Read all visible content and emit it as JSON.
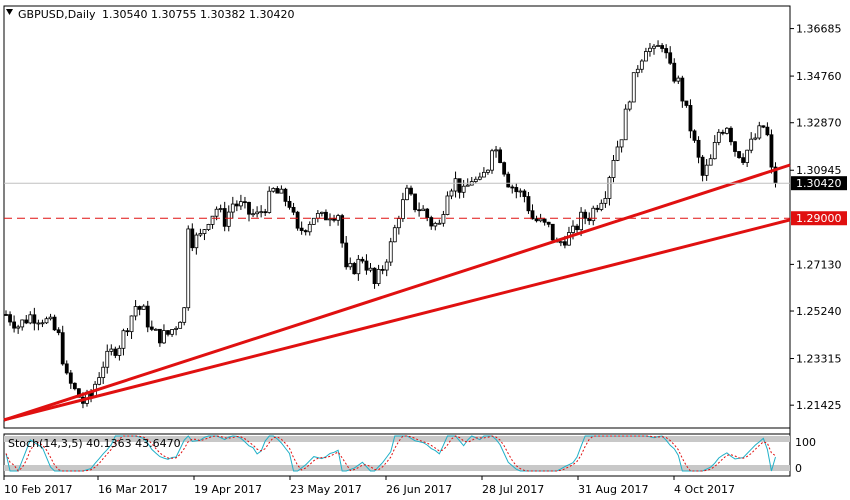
{
  "window": {
    "symbol_label": "GBPUSD,Daily",
    "ohlc_label": "1.30540 1.30755 1.30382 1.30420"
  },
  "colors": {
    "background": "#ffffff",
    "candle": "#000000",
    "trendline": "#e01010",
    "level_line": "#e01010",
    "current_price_bg": "#000000",
    "level_bg": "#e01010",
    "stoch_main": "#20b0c8",
    "stoch_signal": "#e01010"
  },
  "price_axis": {
    "ticks": [
      "1.36685",
      "1.34760",
      "1.32870",
      "1.30945",
      "1.27130",
      "1.25240",
      "1.23315",
      "1.21425"
    ],
    "current_price": "1.30420",
    "level_price": "1.29000"
  },
  "time_axis": {
    "labels": [
      "10 Feb 2017",
      "16 Mar 2017",
      "19 Apr 2017",
      "23 May 2017",
      "26 Jun 2017",
      "28 Jul 2017",
      "31 Aug 2017",
      "4 Oct 2017"
    ]
  },
  "indicator": {
    "label": "Stoch(14,3,5) 40.1363 43.6470",
    "level_high": "100",
    "level_low": "0"
  },
  "chart_data": {
    "type": "candlestick",
    "symbol": "GBPUSD",
    "timeframe": "Daily",
    "ylim": [
      1.205,
      1.376
    ],
    "horizontal_level": 1.29,
    "trendlines": [
      {
        "from": [
          0,
          1.2085
        ],
        "to": [
          188,
          1.3086
        ]
      },
      {
        "from": [
          0,
          1.2085
        ],
        "to": [
          188,
          1.287
        ]
      }
    ],
    "path": [
      [
        0,
        1.251
      ],
      [
        3,
        1.2465
      ],
      [
        6,
        1.2505
      ],
      [
        9,
        1.2495
      ],
      [
        11,
        1.247
      ],
      [
        13,
        1.242
      ],
      [
        15,
        1.225
      ],
      [
        17,
        1.22
      ],
      [
        19,
        1.2155
      ],
      [
        21,
        1.218
      ],
      [
        22,
        1.223
      ],
      [
        24,
        1.231
      ],
      [
        26,
        1.2355
      ],
      [
        28,
        1.239
      ],
      [
        30,
        1.247
      ],
      [
        32,
        1.2545
      ],
      [
        34,
        1.252
      ],
      [
        36,
        1.244
      ],
      [
        38,
        1.242
      ],
      [
        40,
        1.243
      ],
      [
        42,
        1.247
      ],
      [
        44,
        1.253
      ],
      [
        45,
        1.288
      ],
      [
        46,
        1.281
      ],
      [
        48,
        1.2825
      ],
      [
        50,
        1.29
      ],
      [
        52,
        1.294
      ],
      [
        54,
        1.289
      ],
      [
        56,
        1.296
      ],
      [
        58,
        1.295
      ],
      [
        60,
        1.292
      ],
      [
        62,
        1.291
      ],
      [
        64,
        1.295
      ],
      [
        66,
        1.301
      ],
      [
        68,
        1.299
      ],
      [
        70,
        1.296
      ],
      [
        72,
        1.284
      ],
      [
        74,
        1.287
      ],
      [
        76,
        1.291
      ],
      [
        78,
        1.29
      ],
      [
        80,
        1.292
      ],
      [
        82,
        1.292
      ],
      [
        84,
        1.268
      ],
      [
        86,
        1.27
      ],
      [
        88,
        1.274
      ],
      [
        90,
        1.268
      ],
      [
        91,
        1.263
      ],
      [
        93,
        1.27
      ],
      [
        95,
        1.279
      ],
      [
        97,
        1.292
      ],
      [
        99,
        1.3
      ],
      [
        101,
        1.295
      ],
      [
        103,
        1.293
      ],
      [
        105,
        1.288
      ],
      [
        107,
        1.287
      ],
      [
        109,
        1.302
      ],
      [
        111,
        1.305
      ],
      [
        113,
        1.3
      ],
      [
        115,
        1.306
      ],
      [
        117,
        1.304
      ],
      [
        119,
        1.311
      ],
      [
        120,
        1.32
      ],
      [
        122,
        1.315
      ],
      [
        124,
        1.305
      ],
      [
        126,
        1.301
      ],
      [
        128,
        1.299
      ],
      [
        130,
        1.29
      ],
      [
        132,
        1.288
      ],
      [
        134,
        1.286
      ],
      [
        136,
        1.279
      ],
      [
        138,
        1.282
      ],
      [
        140,
        1.284
      ],
      [
        142,
        1.29
      ],
      [
        144,
        1.291
      ],
      [
        146,
        1.296
      ],
      [
        148,
        1.301
      ],
      [
        150,
        1.315
      ],
      [
        152,
        1.324
      ],
      [
        154,
        1.34
      ],
      [
        156,
        1.352
      ],
      [
        158,
        1.36
      ],
      [
        160,
        1.357
      ],
      [
        162,
        1.361
      ],
      [
        164,
        1.35
      ],
      [
        166,
        1.345
      ],
      [
        168,
        1.333
      ],
      [
        170,
        1.32
      ],
      [
        172,
        1.307
      ],
      [
        174,
        1.313
      ],
      [
        176,
        1.325
      ],
      [
        178,
        1.328
      ],
      [
        180,
        1.318
      ],
      [
        182,
        1.315
      ],
      [
        184,
        1.32
      ],
      [
        186,
        1.325
      ],
      [
        187,
        1.327
      ],
      [
        188,
        1.323
      ],
      [
        189,
        1.309
      ],
      [
        190,
        1.3042
      ]
    ],
    "stochastic": {
      "params": "14,3,5",
      "main": 40.1363,
      "signal": 43.647,
      "ylim": [
        0,
        100
      ]
    }
  }
}
